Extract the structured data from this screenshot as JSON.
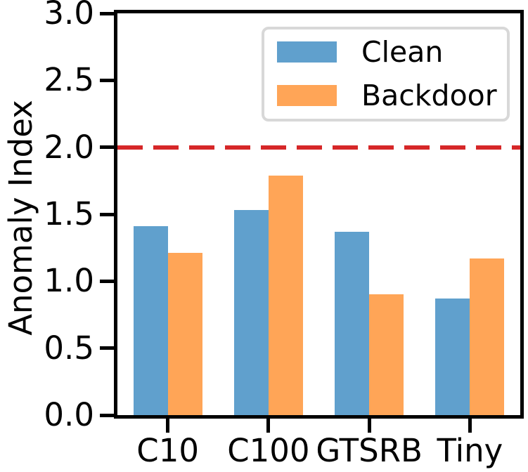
{
  "chart_data": {
    "type": "bar",
    "title": "",
    "ylabel": "Anomaly Index",
    "xlabel": "",
    "ylim": [
      0.0,
      3.0
    ],
    "ytick_labels": [
      "0.0",
      "0.5",
      "1.0",
      "1.5",
      "2.0",
      "2.5",
      "3.0"
    ],
    "categories": [
      "C10",
      "C100",
      "GTSRB",
      "Tiny"
    ],
    "series": [
      {
        "name": "Clean",
        "color": "#60a0cd",
        "values": [
          1.41,
          1.53,
          1.37,
          0.87
        ]
      },
      {
        "name": "Backdoor",
        "color": "#ffa557",
        "values": [
          1.21,
          1.79,
          0.9,
          1.17
        ]
      }
    ],
    "threshold_line": {
      "value": 2.0,
      "color": "#d62728",
      "style": "dashed"
    },
    "legend": {
      "position": "upper right",
      "entries": [
        "Clean",
        "Backdoor"
      ]
    },
    "grid": false,
    "axis_color": "#000000",
    "background_color": "#ffffff"
  }
}
